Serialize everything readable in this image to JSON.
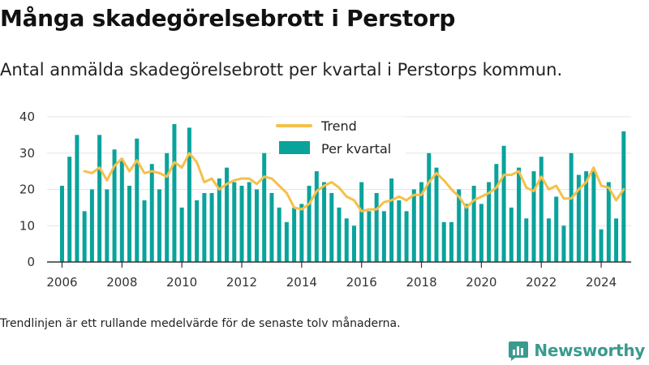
{
  "title": "Många skadegörelsebrott i Perstorp",
  "subtitle": "Antal anmälda skadegörelsebrott per kvartal i Perstorps kommun.",
  "note": "Trendlinjen är ett rullande medelvärde för de senaste tolv månaderna.",
  "brand": {
    "name": "Newsworthy",
    "icon": "newsworthy-logo-icon",
    "color": "#3a9a8e"
  },
  "colors": {
    "bar": "#0aa39c",
    "trend": "#f5c04a",
    "axis": "#333333",
    "grid": "#e6e6e6"
  },
  "chart_data": {
    "type": "bar",
    "start_year": 2006,
    "x_unit": "quarter",
    "xlim": [
      2005.5,
      2025.0
    ],
    "ylim": [
      0,
      40
    ],
    "y_ticks": [
      0,
      10,
      20,
      30,
      40
    ],
    "x_ticks": [
      2006,
      2008,
      2010,
      2012,
      2014,
      2016,
      2018,
      2020,
      2022,
      2024
    ],
    "grid": true,
    "legend_position": "top-center",
    "series": [
      {
        "name": "Per kvartal",
        "type": "bar",
        "values": [
          21,
          29,
          35,
          14,
          20,
          35,
          20,
          31,
          28,
          21,
          34,
          17,
          27,
          20,
          30,
          38,
          15,
          37,
          17,
          19,
          19,
          23,
          26,
          22,
          21,
          22,
          20,
          30,
          19,
          15,
          11,
          15,
          16,
          21,
          25,
          22,
          19,
          15,
          12,
          10,
          22,
          14,
          19,
          14,
          23,
          17,
          14,
          20,
          22,
          30,
          26,
          11,
          11,
          20,
          16,
          21,
          16,
          22,
          27,
          32,
          15,
          26,
          12,
          25,
          29,
          12,
          18,
          10,
          30,
          24,
          25,
          25,
          9,
          22,
          12,
          36
        ]
      },
      {
        "name": "Trend",
        "type": "line",
        "start_index": 3,
        "values": [
          25,
          24.5,
          26,
          22.5,
          26.5,
          28.5,
          25,
          28,
          24.5,
          25,
          24.5,
          23.5,
          27.5,
          26,
          30,
          27.5,
          22,
          23,
          20,
          21.5,
          22.5,
          23,
          23,
          21.5,
          23.5,
          23,
          21,
          19,
          15,
          14.5,
          16,
          19.5,
          21,
          22,
          20.5,
          18,
          17,
          14,
          14.5,
          14.5,
          16.5,
          17,
          18,
          17,
          18.5,
          18.5,
          22,
          24.5,
          22.5,
          20,
          18,
          15,
          17,
          18,
          19,
          20.5,
          24,
          24,
          25,
          20.5,
          19.5,
          23.5,
          20,
          21,
          17.5,
          17.5,
          20,
          22,
          26,
          21,
          20.5,
          17,
          20
        ]
      }
    ]
  }
}
